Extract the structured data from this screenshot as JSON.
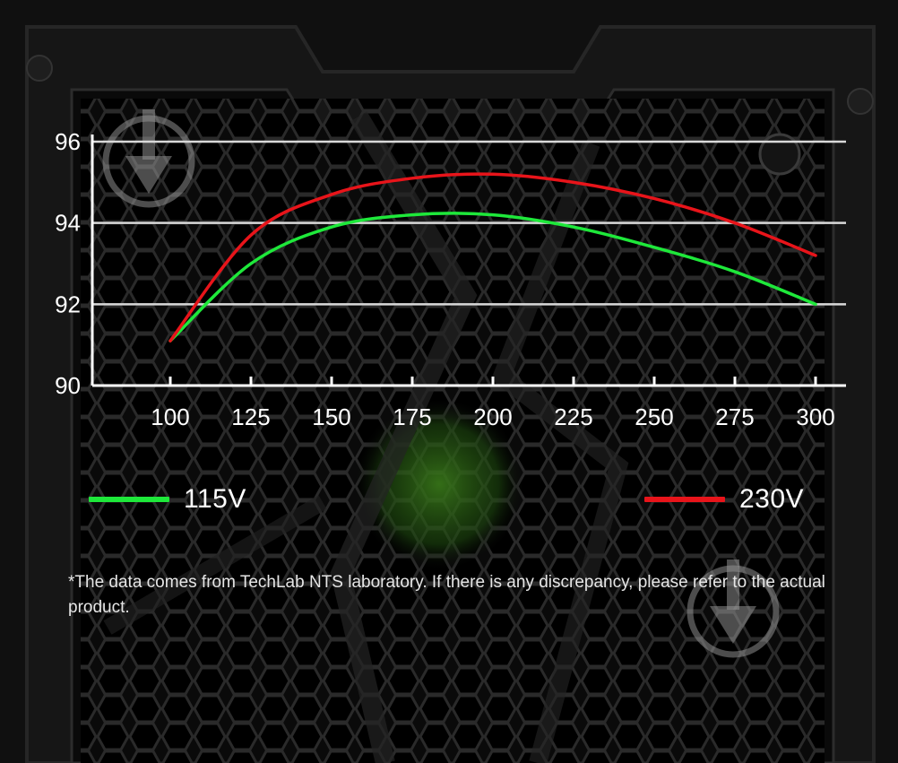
{
  "chart_data": {
    "type": "line",
    "title": "",
    "xlabel": "",
    "ylabel": "",
    "x_ticks": [
      "100",
      "125",
      "150",
      "175",
      "200",
      "225",
      "250",
      "275",
      "300"
    ],
    "y_ticks": [
      "90",
      "92",
      "94",
      "96"
    ],
    "xlim": [
      100,
      300
    ],
    "ylim": [
      90,
      96
    ],
    "grid": "horizontal",
    "legend_placement": "bottom",
    "series": [
      {
        "name": "115V",
        "color": "#1ee83a",
        "x": [
          100,
          125,
          150,
          175,
          200,
          225,
          250,
          275,
          300
        ],
        "y": [
          91.1,
          93.0,
          93.9,
          94.2,
          94.2,
          93.9,
          93.4,
          92.8,
          92.0
        ]
      },
      {
        "name": "230V",
        "color": "#e8141a",
        "x": [
          100,
          125,
          150,
          175,
          200,
          225,
          250,
          275,
          300
        ],
        "y": [
          91.1,
          93.7,
          94.7,
          95.1,
          95.2,
          95.0,
          94.6,
          94.0,
          93.2
        ]
      }
    ]
  },
  "legend": {
    "items": [
      {
        "label": "115V",
        "color": "#1ee83a"
      },
      {
        "label": "230V",
        "color": "#e8141a"
      }
    ]
  },
  "footnote": "*The data comes from TechLab NTS laboratory. If there is any discrepancy, please refer to the actual product.",
  "icons": [
    "download-arrow-icon",
    "fan-icon"
  ]
}
